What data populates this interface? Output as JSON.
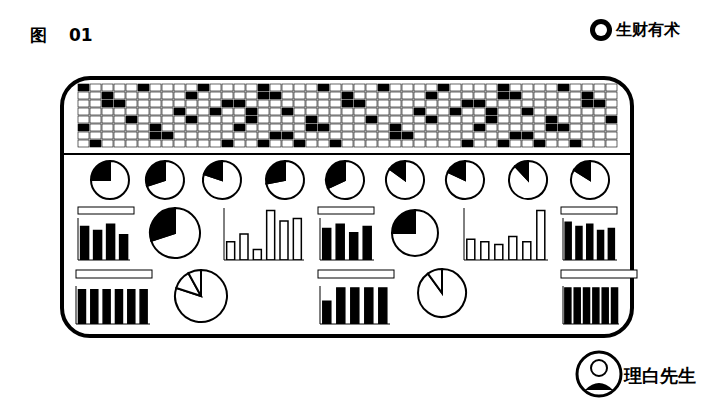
{
  "header": {
    "label": "图",
    "number": "01"
  },
  "brand": "生财有术",
  "author": "理白先生",
  "chart_data": [
    {
      "type": "pie",
      "values": [
        75,
        25
      ],
      "colors": [
        "#ffffff",
        "#000000"
      ]
    },
    {
      "type": "pie",
      "values": [
        70,
        30
      ],
      "colors": [
        "#ffffff",
        "#000000"
      ]
    },
    {
      "type": "pie",
      "values": [
        80,
        20
      ],
      "colors": [
        "#ffffff",
        "#000000"
      ]
    },
    {
      "type": "pie",
      "values": [
        72,
        28
      ],
      "colors": [
        "#ffffff",
        "#000000"
      ]
    },
    {
      "type": "pie",
      "values": [
        68,
        32
      ],
      "colors": [
        "#ffffff",
        "#000000"
      ]
    },
    {
      "type": "pie",
      "values": [
        85,
        15
      ],
      "colors": [
        "#ffffff",
        "#000000"
      ]
    },
    {
      "type": "pie",
      "values": [
        82,
        18
      ],
      "colors": [
        "#ffffff",
        "#000000"
      ]
    },
    {
      "type": "pie",
      "values": [
        88,
        12
      ],
      "colors": [
        "#ffffff",
        "#000000"
      ]
    },
    {
      "type": "pie",
      "values": [
        84,
        16
      ],
      "colors": [
        "#ffffff",
        "#000000"
      ]
    },
    {
      "type": "bar",
      "values": [
        80,
        70,
        85,
        60
      ],
      "color": "#000000",
      "ylim": [
        0,
        100
      ],
      "tick_labels": false
    },
    {
      "type": "pie",
      "values": [
        70,
        30
      ],
      "colors": [
        "#ffffff",
        "#000000"
      ]
    },
    {
      "type": "bar",
      "values": [
        35,
        50,
        20,
        95,
        75,
        80
      ],
      "color": "#ffffff",
      "ylim": [
        0,
        100
      ],
      "tick_labels": false
    },
    {
      "type": "bar",
      "values": [
        75,
        85,
        65,
        80
      ],
      "color": "#000000",
      "ylim": [
        0,
        100
      ],
      "tick_labels": false
    },
    {
      "type": "pie",
      "values": [
        75,
        25
      ],
      "colors": [
        "#ffffff",
        "#000000"
      ]
    },
    {
      "type": "bar",
      "values": [
        40,
        35,
        30,
        45,
        35,
        95
      ],
      "color": "#ffffff",
      "ylim": [
        0,
        100
      ],
      "tick_labels": false
    },
    {
      "type": "bar",
      "values": [
        90,
        80,
        85,
        70,
        75
      ],
      "color": "#000000",
      "ylim": [
        0,
        100
      ],
      "tick_labels": false
    },
    {
      "type": "bar",
      "values": [
        90,
        90,
        90,
        90,
        90,
        90
      ],
      "color": "#000000",
      "ylim": [
        0,
        100
      ],
      "tick_labels": false
    },
    {
      "type": "pie",
      "values": [
        80,
        12,
        8
      ],
      "colors": [
        "#ffffff",
        "#ffffff",
        "#ffffff"
      ]
    },
    {
      "type": "bar",
      "values": [
        60,
        95,
        95,
        95,
        95
      ],
      "color": "#000000",
      "ylim": [
        0,
        100
      ],
      "tick_labels": false
    },
    {
      "type": "pie",
      "values": [
        90,
        10
      ],
      "colors": [
        "#ffffff",
        "#ffffff"
      ]
    },
    {
      "type": "bar",
      "values": [
        95,
        95,
        95,
        95,
        95,
        95
      ],
      "color": "#000000",
      "ylim": [
        0,
        100
      ],
      "tick_labels": false
    }
  ]
}
